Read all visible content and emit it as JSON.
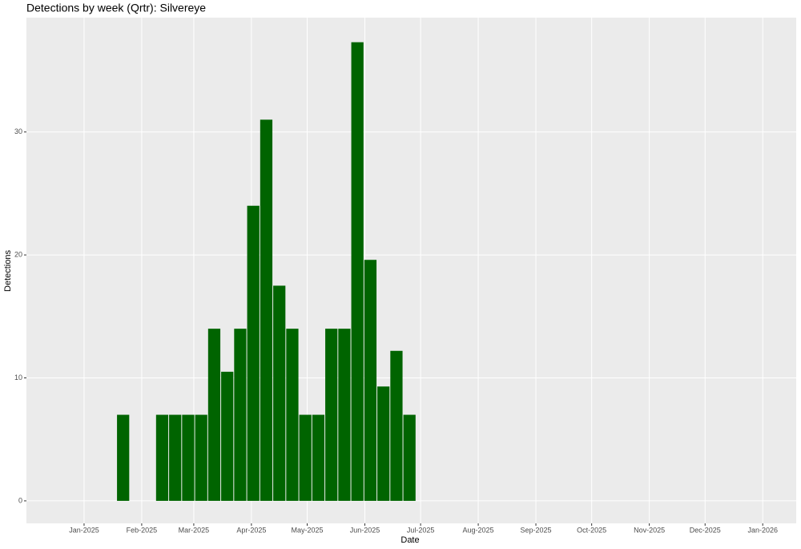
{
  "chart_data": {
    "type": "bar",
    "title": "Detections by week (Qrtr): Silvereye",
    "x_label": "Date",
    "y_label": "Detections",
    "x": [
      "2025-01-22",
      "2025-02-12",
      "2025-02-19",
      "2025-02-26",
      "2025-03-05",
      "2025-03-12",
      "2025-03-19",
      "2025-03-26",
      "2025-04-02",
      "2025-04-09",
      "2025-04-16",
      "2025-04-23",
      "2025-04-30",
      "2025-05-07",
      "2025-05-14",
      "2025-05-21",
      "2025-05-28",
      "2025-06-04",
      "2025-06-11",
      "2025-06-18",
      "2025-06-25"
    ],
    "values": [
      7,
      7,
      7,
      7,
      7,
      14,
      10.5,
      14,
      24,
      31,
      17.5,
      14,
      7,
      7,
      14,
      14,
      37.3,
      19.6,
      9.3,
      12.2,
      7
    ],
    "color": "#006400",
    "xlim": [
      "2024-12-01",
      "2026-01-19"
    ],
    "xticks": [
      {
        "value": "2025-01-01",
        "label": "Jan-2025"
      },
      {
        "value": "2025-02-01",
        "label": "Feb-2025"
      },
      {
        "value": "2025-03-01",
        "label": "Mar-2025"
      },
      {
        "value": "2025-04-01",
        "label": "Apr-2025"
      },
      {
        "value": "2025-05-01",
        "label": "May-2025"
      },
      {
        "value": "2025-06-01",
        "label": "Jun-2025"
      },
      {
        "value": "2025-07-01",
        "label": "Jul-2025"
      },
      {
        "value": "2025-08-01",
        "label": "Aug-2025"
      },
      {
        "value": "2025-09-01",
        "label": "Sep-2025"
      },
      {
        "value": "2025-10-01",
        "label": "Oct-2025"
      },
      {
        "value": "2025-11-01",
        "label": "Nov-2025"
      },
      {
        "value": "2025-12-01",
        "label": "Dec-2025"
      },
      {
        "value": "2026-01-01",
        "label": "Jan-2026"
      }
    ],
    "ylim": [
      -1.83,
      39.3
    ],
    "yticks": [
      0,
      10,
      20,
      30
    ],
    "grid": true
  }
}
